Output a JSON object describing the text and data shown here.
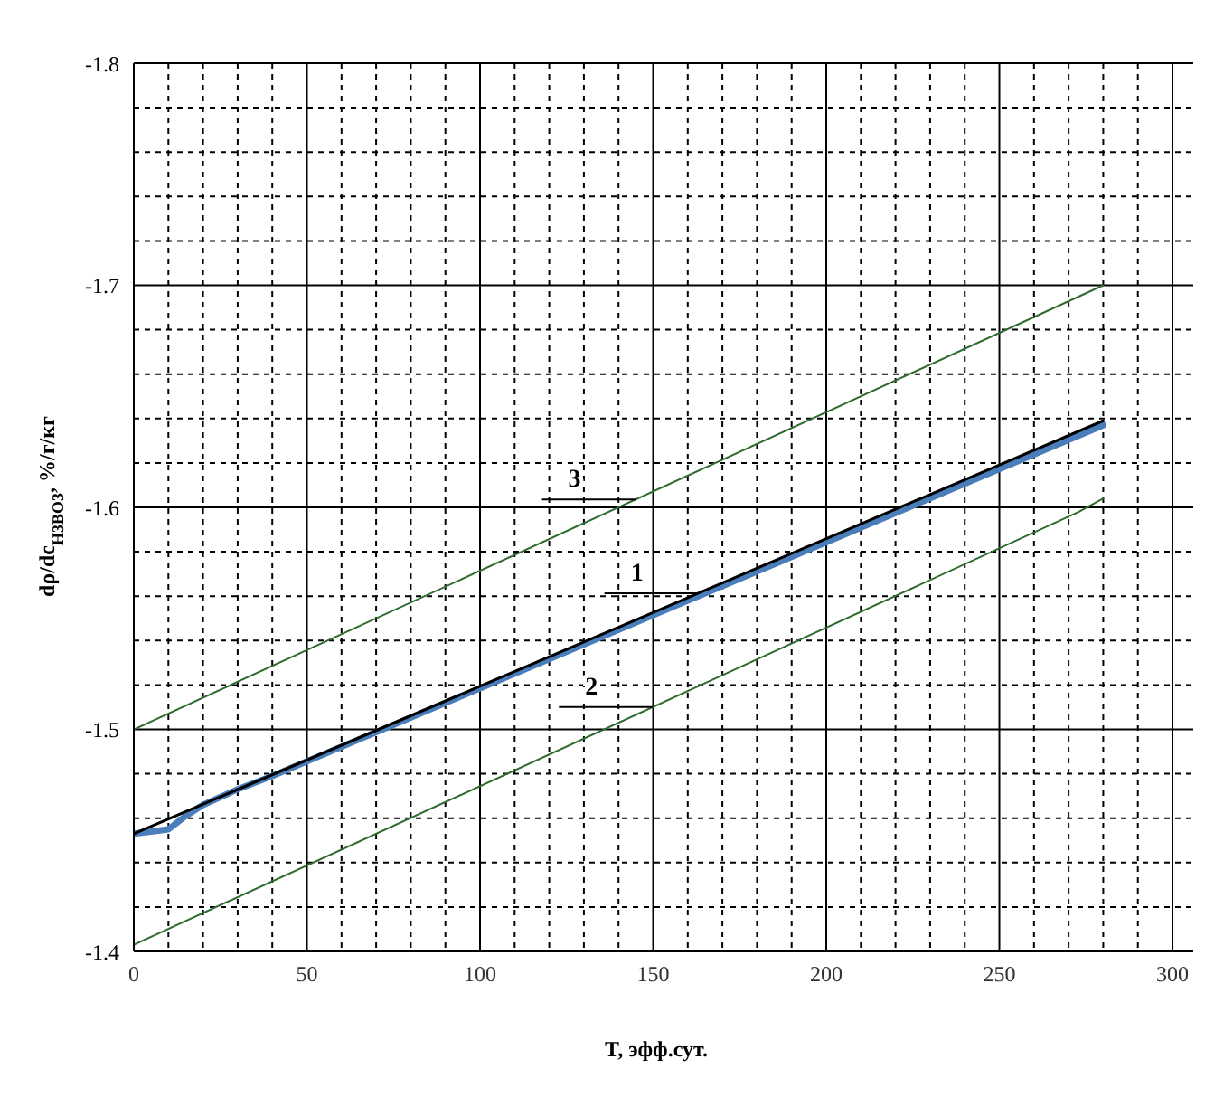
{
  "chart_data": {
    "type": "line",
    "xlabel": "T, эфф.сут.",
    "ylabel": "dρ/dc$_{H3BO3}$, %/г/кг",
    "xlim": [
      0,
      306
    ],
    "ylim": [
      -1.4,
      -1.8
    ],
    "xticks": [
      0,
      {
        "value": 10,
        "label": null
      },
      {
        "value": 20,
        "label": null
      },
      {
        "value": 30,
        "label": null
      },
      {
        "value": 40,
        "label": null
      },
      50,
      {
        "value": 60,
        "label": null
      },
      {
        "value": 70,
        "label": null
      },
      {
        "value": 80,
        "label": null
      },
      {
        "value": 90,
        "label": null
      },
      100,
      {
        "value": 110,
        "label": null
      },
      {
        "value": 120,
        "label": null
      },
      {
        "value": 130,
        "label": null
      },
      {
        "value": 140,
        "label": null
      },
      150,
      {
        "value": 160,
        "label": null
      },
      {
        "value": 170,
        "label": null
      },
      {
        "value": 180,
        "label": null
      },
      {
        "value": 190,
        "label": null
      },
      200,
      {
        "value": 210,
        "label": null
      },
      {
        "value": 220,
        "label": null
      },
      {
        "value": 230,
        "label": null
      },
      {
        "value": 240,
        "label": null
      },
      250,
      {
        "value": 260,
        "label": null
      },
      {
        "value": 270,
        "label": null
      },
      {
        "value": 280,
        "label": null
      },
      {
        "value": 290,
        "label": null
      },
      300
    ],
    "yticks": [
      -1.4,
      {
        "value": -1.42,
        "label": null
      },
      {
        "value": -1.44,
        "label": null
      },
      {
        "value": -1.46,
        "label": null
      },
      {
        "value": -1.48,
        "label": null
      },
      -1.5,
      {
        "value": -1.52,
        "label": null
      },
      {
        "value": -1.54,
        "label": null
      },
      {
        "value": -1.56,
        "label": null
      },
      {
        "value": -1.58,
        "label": null
      },
      -1.6,
      {
        "value": -1.62,
        "label": null
      },
      {
        "value": -1.64,
        "label": null
      },
      {
        "value": -1.66,
        "label": null
      },
      {
        "value": -1.68,
        "label": null
      },
      -1.7,
      {
        "value": -1.72,
        "label": null
      },
      {
        "value": -1.74,
        "label": null
      },
      {
        "value": -1.76,
        "label": null
      },
      {
        "value": -1.78,
        "label": null
      },
      -1.8
    ],
    "grid": true,
    "legend": false,
    "marker": "none",
    "line_style": "solid",
    "series": [
      {
        "name": "3",
        "color": "#2e6b2e",
        "x": [
          0,
          280
        ],
        "values": [
          -1.5,
          -1.7
        ]
      },
      {
        "name": "2",
        "color": "#2e6b2e",
        "x": [
          0,
          273,
          280
        ],
        "values": [
          -1.403,
          -1.598,
          -1.604
        ]
      },
      {
        "color": "#4a7ebb",
        "x": [
          0,
          5,
          10,
          15,
          20,
          30,
          40,
          280
        ],
        "values": [
          -1.453,
          -1.454,
          -1.455,
          -1.461,
          -1.466,
          -1.473,
          -1.479,
          -1.637
        ]
      },
      {
        "name": "1",
        "color": "#000000",
        "x": [
          0,
          280
        ],
        "values": [
          -1.453,
          -1.639
        ]
      }
    ]
  }
}
